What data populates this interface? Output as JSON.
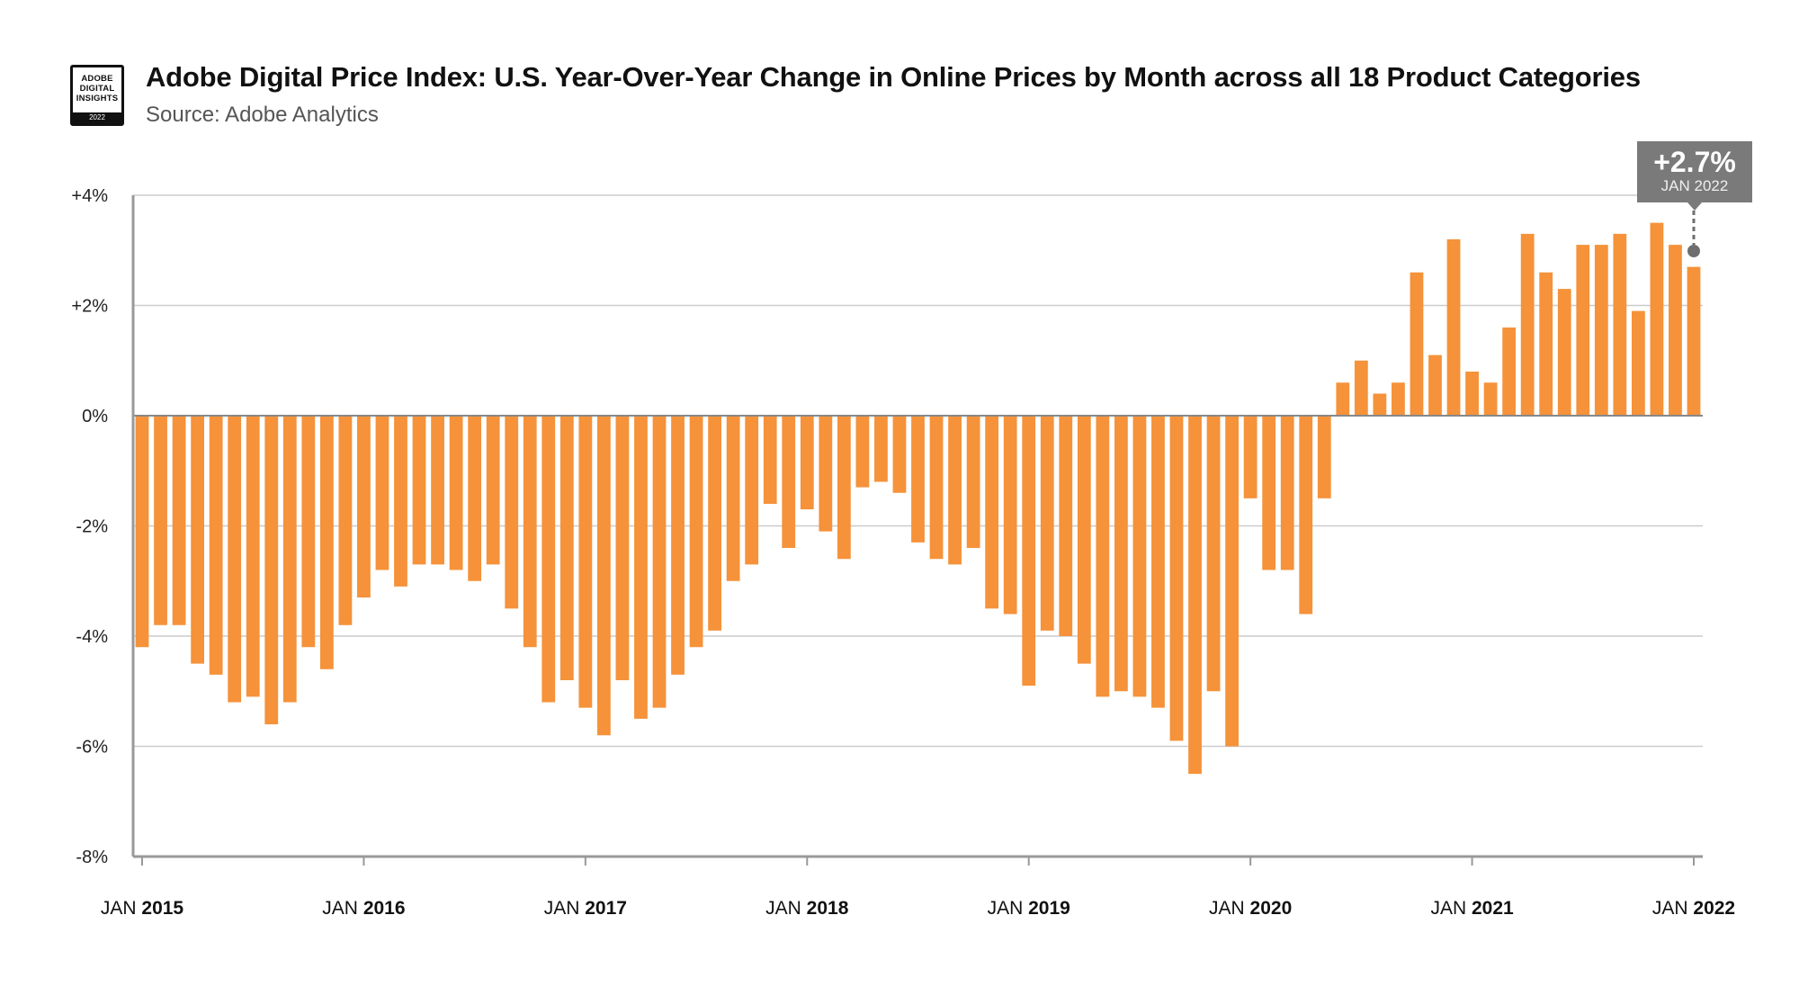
{
  "header": {
    "title": "Adobe Digital Price Index: U.S. Year-Over-Year Change in Online Prices by Month across all 18 Product Categories",
    "subtitle": "Source: Adobe Analytics"
  },
  "logo": {
    "line1": "ADOBE",
    "line2": "DIGITAL",
    "line3": "INSIGHTS",
    "year": "2022"
  },
  "callout": {
    "value": "+2.7%",
    "date": "JAN 2022"
  },
  "colors": {
    "bar": "#F5923A",
    "grid": "#CCCCCC",
    "axis": "#999999",
    "callout": "#7A7A7A",
    "marker": "#6E6E6E"
  },
  "chart_data": {
    "type": "bar",
    "title": "Adobe Digital Price Index: U.S. Year-Over-Year Change in Online Prices by Month across all 18 Product Categories",
    "subtitle": "Source: Adobe Analytics",
    "xlabel": "",
    "ylabel": "",
    "ylim": [
      -8,
      4
    ],
    "y_ticks": [
      4,
      2,
      0,
      -2,
      -4,
      -6,
      -8
    ],
    "y_tick_labels": [
      "+4%",
      "+2%",
      "0%",
      "-2%",
      "-4%",
      "-6%",
      "-8%"
    ],
    "grid": true,
    "x_start": "2015-01",
    "x_end": "2022-01",
    "x_tick_labels": [
      {
        "month": "JAN",
        "year": "2015"
      },
      {
        "month": "JAN",
        "year": "2016"
      },
      {
        "month": "JAN",
        "year": "2017"
      },
      {
        "month": "JAN",
        "year": "2018"
      },
      {
        "month": "JAN",
        "year": "2019"
      },
      {
        "month": "JAN",
        "year": "2020"
      },
      {
        "month": "JAN",
        "year": "2021"
      },
      {
        "month": "JAN",
        "year": "2022"
      }
    ],
    "values": [
      -4.2,
      -3.8,
      -3.8,
      -4.5,
      -4.7,
      -5.2,
      -5.1,
      -5.6,
      -5.2,
      -4.2,
      -4.6,
      -3.8,
      -3.3,
      -2.8,
      -3.1,
      -2.7,
      -2.7,
      -2.8,
      -3.0,
      -2.7,
      -3.5,
      -4.2,
      -5.2,
      -4.8,
      -5.3,
      -5.8,
      -4.8,
      -5.5,
      -5.3,
      -4.7,
      -4.2,
      -3.9,
      -3.0,
      -2.7,
      -1.6,
      -2.4,
      -1.7,
      -2.1,
      -2.6,
      -1.3,
      -1.2,
      -1.4,
      -2.3,
      -2.6,
      -2.7,
      -2.4,
      -3.5,
      -3.6,
      -4.9,
      -3.9,
      -4.0,
      -4.5,
      -5.1,
      -5.0,
      -5.1,
      -5.3,
      -5.9,
      -6.5,
      -5.0,
      -6.0,
      -1.5,
      -2.8,
      -2.8,
      -3.6,
      -1.5,
      0.6,
      1.0,
      0.4,
      0.6,
      2.6,
      1.1,
      3.2,
      0.8,
      0.6,
      1.6,
      3.3,
      2.6,
      2.3,
      3.1,
      3.1,
      3.3,
      1.9,
      3.5,
      3.1,
      2.7
    ]
  }
}
